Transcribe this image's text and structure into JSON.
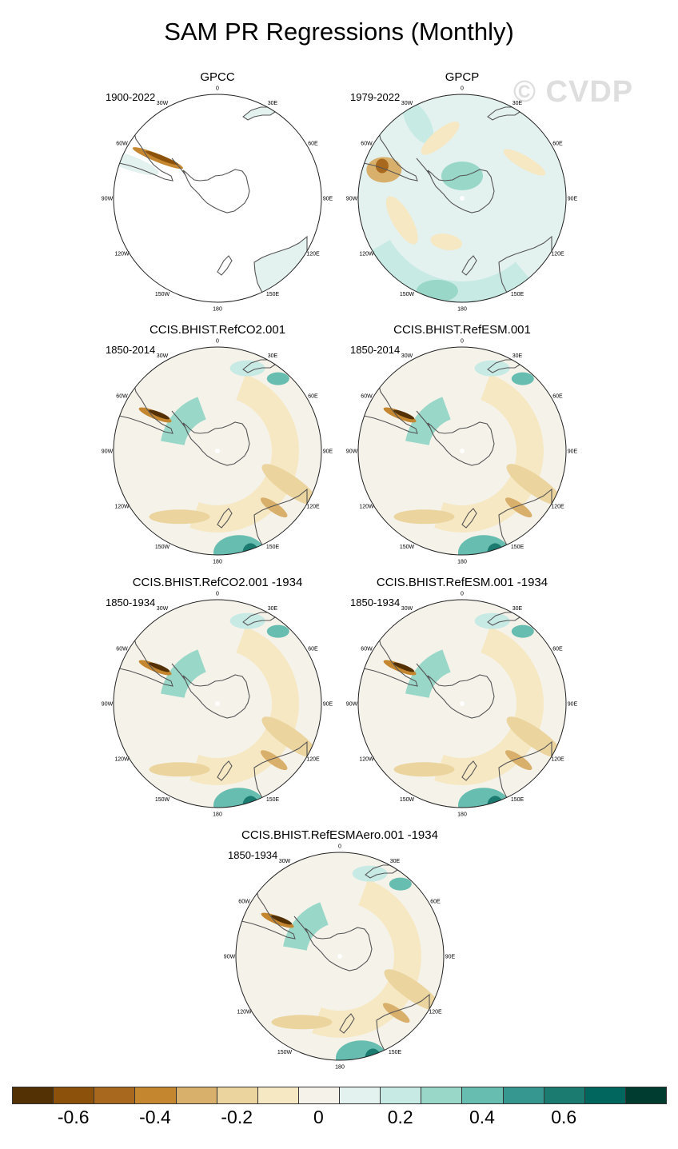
{
  "title": "SAM PR Regressions (Monthly)",
  "watermark": "© CVDP",
  "lon_labels": [
    "0",
    "30E",
    "60E",
    "90E",
    "120E",
    "150E",
    "180",
    "150W",
    "120W",
    "90W",
    "60W",
    "30W"
  ],
  "panels": [
    {
      "title": "GPCC",
      "period": "1900-2022",
      "field": "land"
    },
    {
      "title": "GPCP",
      "period": "1979-2022",
      "field": "obs"
    },
    {
      "title": "CCIS.BHIST.RefCO2.001",
      "period": "1850-2014",
      "field": "model"
    },
    {
      "title": "CCIS.BHIST.RefESM.001",
      "period": "1850-2014",
      "field": "model"
    },
    {
      "title": "CCIS.BHIST.RefCO2.001 -1934",
      "period": "1850-1934",
      "field": "model"
    },
    {
      "title": "CCIS.BHIST.RefESM.001 -1934",
      "period": "1850-1934",
      "field": "model"
    },
    {
      "title": "CCIS.BHIST.RefESMAero.001 -1934",
      "period": "1850-1934",
      "field": "model"
    }
  ],
  "colorbar": {
    "colors": [
      "#543005",
      "#8c510a",
      "#a8691e",
      "#c4872f",
      "#d9b06b",
      "#ebd49e",
      "#f6e8c3",
      "#f5f2ea",
      "#e3f1ef",
      "#c7eae5",
      "#99d8c9",
      "#66bdb0",
      "#35978f",
      "#1b7b70",
      "#01665e",
      "#003c30"
    ],
    "tick_labels": [
      "-0.6",
      "-0.4",
      "-0.2",
      "0",
      "0.2",
      "0.4",
      "0.6"
    ],
    "tick_values": [
      -0.6,
      -0.4,
      -0.2,
      0,
      0.2,
      0.4,
      0.6
    ]
  }
}
